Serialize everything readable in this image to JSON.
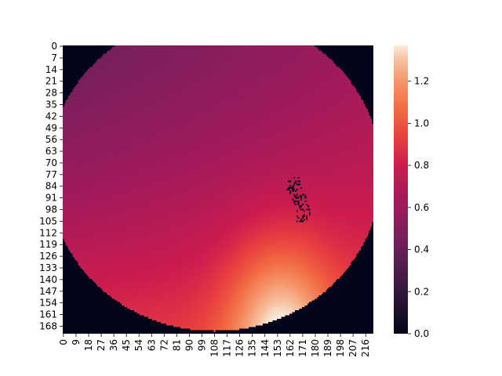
{
  "chart_data": {
    "type": "heatmap",
    "title": "",
    "xlabel": "",
    "ylabel": "",
    "rows": 173,
    "cols": 222,
    "x_tick_labels": [
      0,
      9,
      18,
      27,
      36,
      45,
      54,
      63,
      72,
      81,
      90,
      99,
      108,
      117,
      126,
      135,
      144,
      153,
      162,
      171,
      180,
      189,
      198,
      207,
      216
    ],
    "y_tick_labels": [
      0,
      7,
      14,
      21,
      28,
      35,
      42,
      49,
      56,
      63,
      70,
      77,
      84,
      91,
      98,
      105,
      112,
      119,
      126,
      133,
      140,
      147,
      154,
      161,
      168
    ],
    "value_range": [
      0.0,
      1.37
    ],
    "colorbar": {
      "ticks": [
        0.0,
        0.2,
        0.4,
        0.6,
        0.8,
        1.0,
        1.2
      ],
      "tick_labels": [
        "0.0",
        "0.2",
        "0.4",
        "0.6",
        "0.8",
        "1.0",
        "1.2"
      ],
      "colormap": "rocket"
    },
    "value_field": {
      "description_values": {
        "top_left": 0.42,
        "top_right": 0.63,
        "mid_left": 0.62,
        "bottom_left": 0.88,
        "bottom_center": 1.3,
        "bottom_right": 0.95
      }
    },
    "masked_value": 0.0
  }
}
